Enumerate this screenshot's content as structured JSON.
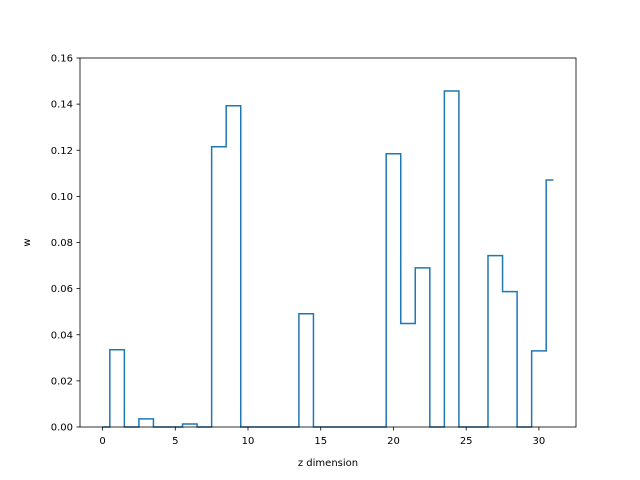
{
  "chart_data": {
    "type": "line",
    "step": "mid",
    "title": "",
    "xlabel": "z dimension",
    "ylabel": "w",
    "xlim": [
      -1.55,
      32.55
    ],
    "ylim": [
      0,
      0.16
    ],
    "xticks": [
      0,
      5,
      10,
      15,
      20,
      25,
      30
    ],
    "yticks": [
      0.0,
      0.02,
      0.04,
      0.06,
      0.08,
      0.1,
      0.12,
      0.14,
      0.16
    ],
    "ytick_labels": [
      "0.00",
      "0.02",
      "0.04",
      "0.06",
      "0.08",
      "0.10",
      "0.12",
      "0.14",
      "0.16"
    ],
    "grid": false,
    "series": [
      {
        "color": "#1f77b4",
        "x": [
          0,
          1,
          2,
          3,
          4,
          5,
          6,
          7,
          8,
          9,
          10,
          11,
          12,
          13,
          14,
          15,
          16,
          17,
          18,
          19,
          20,
          21,
          22,
          23,
          24,
          25,
          26,
          27,
          28,
          29,
          30,
          31
        ],
        "y": [
          0.0,
          0.0335,
          0.0,
          0.0035,
          0.0,
          0.0,
          0.0013,
          0.0,
          0.1215,
          0.1393,
          0.0,
          0.0,
          0.0,
          0.0,
          0.0491,
          0.0,
          0.0,
          0.0,
          0.0,
          0.0,
          0.1185,
          0.0449,
          0.069,
          0.0,
          0.1457,
          0.0,
          0.0,
          0.0743,
          0.0587,
          0.0,
          0.033,
          0.1071
        ]
      }
    ]
  }
}
